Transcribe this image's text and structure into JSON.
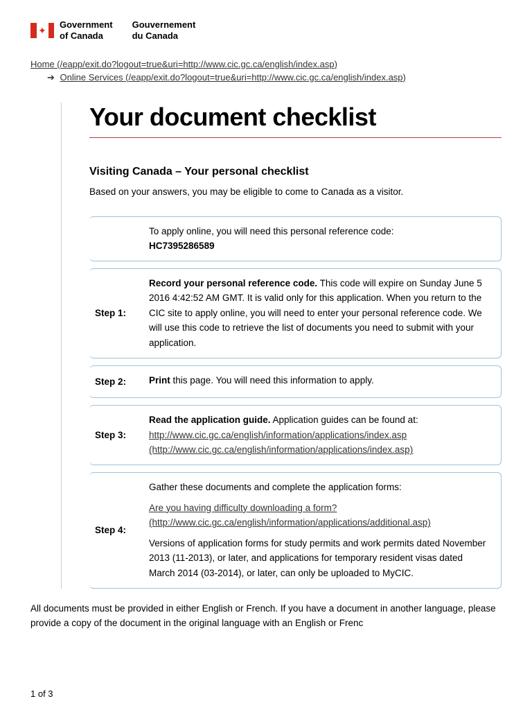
{
  "header": {
    "gov_en": "Government\nof Canada",
    "gov_fr": "Gouvernement\ndu Canada"
  },
  "breadcrumb": {
    "home": "Home (/eapp/exit.do?logout=true&uri=http://www.cic.gc.ca/english/index.asp)",
    "services": "Online Services (/eapp/exit.do?logout=true&uri=http://www.cic.gc.ca/english/index.asp)"
  },
  "title": "Your document checklist",
  "subtitle": "Visiting Canada – Your personal checklist",
  "intro": "Based on your answers, you may be eligible to come to Canada as a visitor.",
  "ref": {
    "label": "To apply online, you will need this personal reference code:",
    "code": "HC7395286589"
  },
  "steps": [
    {
      "label": "Step 1:",
      "bold": "Record your personal reference code.",
      "text": " This code will expire on Sunday June 5 2016 4:42:52 AM GMT. It is valid only for this application. When you return to the CIC site to apply online, you will need to enter your personal reference code. We will use this code to retrieve the list of documents you need to submit with your application."
    },
    {
      "label": "Step 2:",
      "bold": "Print",
      "text": " this page. You will need this information to apply."
    },
    {
      "label": "Step 3:",
      "bold": "Read the application guide.",
      "pretext": "  Application guides can be found at: ",
      "link": "http://www.cic.gc.ca/english/information/applications/index.asp (http://www.cic.gc.ca/english/information/applications/index.asp)"
    },
    {
      "label": "Step 4:",
      "p1": "Gather these documents and complete the application forms:",
      "link": "Are you having difficulty downloading a form? (http://www.cic.gc.ca/english/information/applications/additional.asp)",
      "p2": "Versions of application forms for study permits and work permits dated November 2013 (11-2013), or later, and applications for temporary resident visas dated March 2014 (03-2014), or later, can only be uploaded to MyCIC."
    }
  ],
  "footer": "All documents must be provided in either English or French. If you have a document in another language, please provide a copy of the document in the original language with an English or Frenc",
  "page_num": "1 of 3"
}
